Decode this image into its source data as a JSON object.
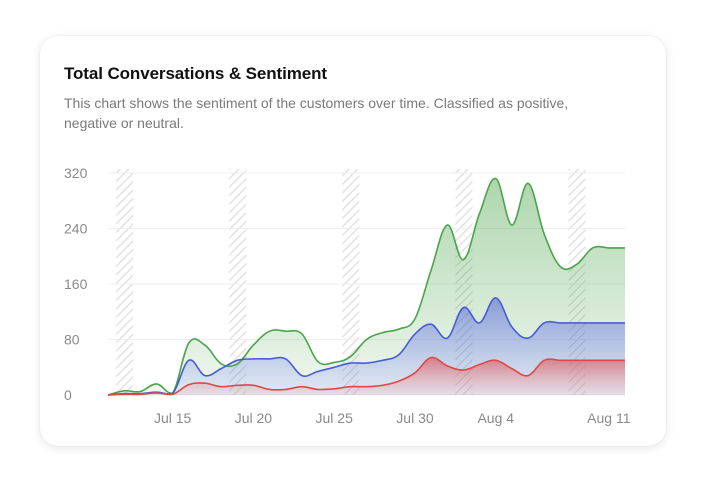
{
  "card": {
    "title": "Total Conversations & Sentiment",
    "subtitle": "This chart shows the sentiment of the customers over time. Classified as positive, negative or neutral."
  },
  "chart_data": {
    "type": "area",
    "title": "Total Conversations & Sentiment",
    "xlabel": "",
    "ylabel": "",
    "x_ticks": [
      "Jul 15",
      "Jul 20",
      "Jul 25",
      "Jul 30",
      "Aug 4",
      "Aug 11"
    ],
    "x_tick_days": [
      15,
      20,
      25,
      30,
      35,
      42
    ],
    "y_ticks": [
      0,
      80,
      160,
      240,
      320
    ],
    "ylim": [
      0,
      320
    ],
    "x": [
      "Jul 11",
      "Jul 12",
      "Jul 13",
      "Jul 14",
      "Jul 15",
      "Jul 16",
      "Jul 17",
      "Jul 18",
      "Jul 19",
      "Jul 20",
      "Jul 21",
      "Jul 22",
      "Jul 23",
      "Jul 24",
      "Jul 25",
      "Jul 26",
      "Jul 27",
      "Jul 28",
      "Jul 29",
      "Jul 30",
      "Jul 31",
      "Aug 1",
      "Aug 2",
      "Aug 3",
      "Aug 4",
      "Aug 5",
      "Aug 6",
      "Aug 7",
      "Aug 8",
      "Aug 9",
      "Aug 10",
      "Aug 11",
      "Aug 12"
    ],
    "x_days": [
      11,
      12,
      13,
      14,
      15,
      16,
      17,
      18,
      19,
      20,
      21,
      22,
      23,
      24,
      25,
      26,
      27,
      28,
      29,
      30,
      31,
      32,
      33,
      34,
      35,
      36,
      37,
      38,
      39,
      40,
      41,
      42,
      43
    ],
    "series": [
      {
        "key": "total",
        "color": "#4aa44a",
        "values": [
          0,
          6,
          5,
          16,
          3,
          75,
          72,
          45,
          45,
          72,
          92,
          92,
          88,
          48,
          47,
          55,
          80,
          90,
          95,
          110,
          180,
          245,
          195,
          262,
          312,
          245,
          305,
          232,
          185,
          188,
          212,
          212,
          212
        ]
      },
      {
        "key": "neutral",
        "color": "#4a5bd8",
        "values": [
          0,
          2,
          2,
          4,
          2,
          50,
          28,
          38,
          50,
          52,
          52,
          52,
          28,
          34,
          40,
          46,
          46,
          50,
          58,
          88,
          102,
          82,
          126,
          104,
          140,
          98,
          82,
          104,
          104,
          104,
          104,
          104,
          104
        ]
      },
      {
        "key": "negative",
        "color": "#e04848",
        "values": [
          0,
          1,
          1,
          3,
          1,
          15,
          17,
          12,
          14,
          14,
          8,
          8,
          12,
          8,
          9,
          12,
          12,
          14,
          20,
          32,
          54,
          42,
          36,
          44,
          50,
          38,
          28,
          50,
          50,
          50,
          50,
          50,
          50
        ]
      }
    ],
    "hatch_bands_days": [
      12,
      19,
      26,
      33,
      40
    ],
    "grid": true,
    "legend": "none"
  }
}
